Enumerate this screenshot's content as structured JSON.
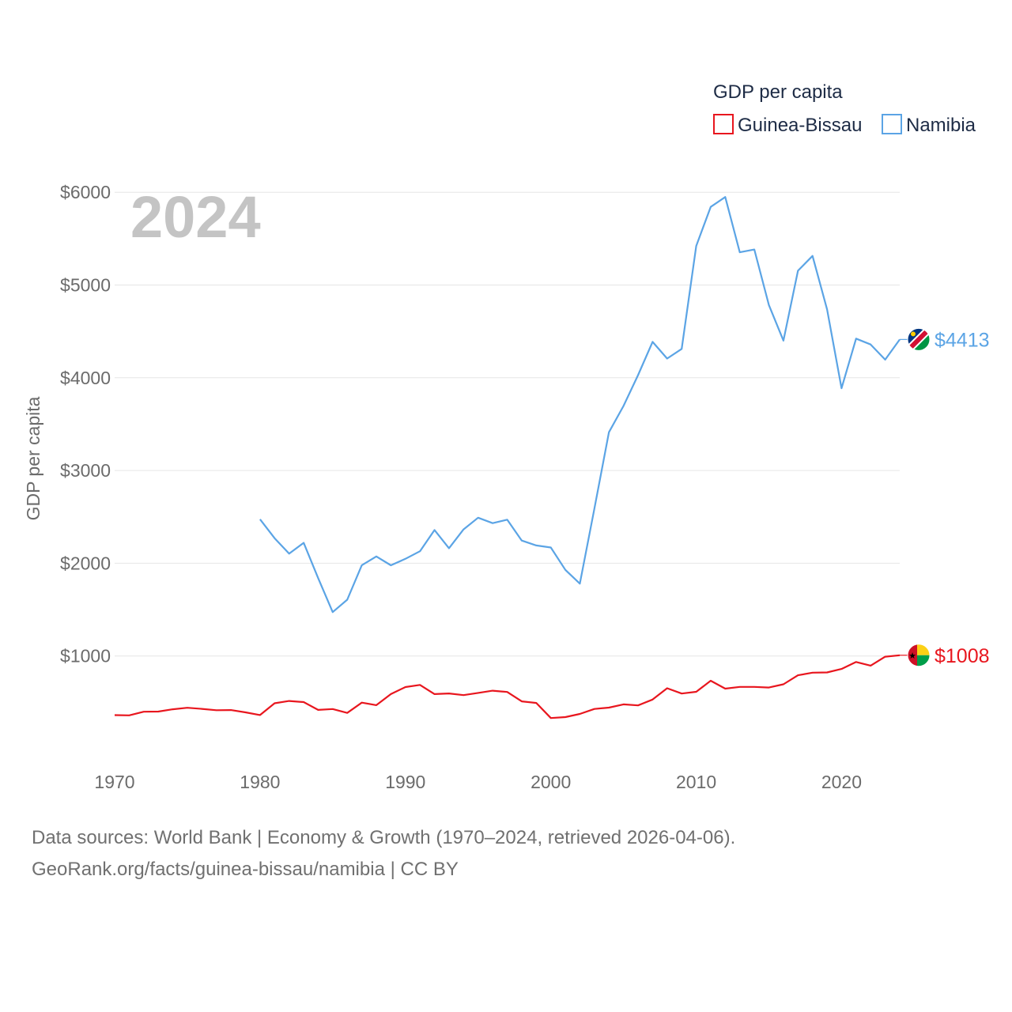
{
  "chart_data": {
    "type": "line",
    "year_label": "2024",
    "ylabel": "GDP per capita",
    "legend_title": "GDP per capita",
    "legend_placement": "top-right",
    "ylim": [
      0,
      6100
    ],
    "xlim": [
      1970,
      2024
    ],
    "x_ticks": [
      1970,
      1980,
      1990,
      2000,
      2010,
      2020
    ],
    "x_tick_labels": [
      "1970",
      "1980",
      "1990",
      "2000",
      "2010",
      "2020"
    ],
    "y_ticks": [
      1000,
      2000,
      3000,
      4000,
      5000,
      6000
    ],
    "y_tick_labels": [
      "$1000",
      "$2000",
      "$3000",
      "$4000",
      "$5000",
      "$6000"
    ],
    "grid": true,
    "series": [
      {
        "name": "Guinea-Bissau",
        "color": "#e8161e",
        "end_label": "$1008",
        "flag": "guinea-bissau-flag",
        "x": [
          1970,
          1971,
          1972,
          1973,
          1974,
          1975,
          1976,
          1977,
          1978,
          1979,
          1980,
          1981,
          1982,
          1983,
          1984,
          1985,
          1986,
          1987,
          1988,
          1989,
          1990,
          1991,
          1992,
          1993,
          1994,
          1995,
          1996,
          1997,
          1998,
          1999,
          2000,
          2001,
          2002,
          2003,
          2004,
          2005,
          2006,
          2007,
          2008,
          2009,
          2010,
          2011,
          2012,
          2013,
          2014,
          2015,
          2016,
          2017,
          2018,
          2019,
          2020,
          2021,
          2022,
          2023,
          2024
        ],
        "values": [
          362,
          360,
          399,
          401,
          425,
          442,
          430,
          415,
          417,
          392,
          363,
          490,
          515,
          503,
          419,
          428,
          386,
          497,
          470,
          589,
          665,
          688,
          589,
          596,
          578,
          602,
          626,
          612,
          511,
          494,
          331,
          341,
          375,
          429,
          443,
          478,
          467,
          530,
          652,
          595,
          614,
          733,
          648,
          667,
          667,
          660,
          695,
          792,
          820,
          823,
          860,
          935,
          896,
          992,
          1008
        ]
      },
      {
        "name": "Namibia",
        "color": "#5ba4e5",
        "end_label": "$4413",
        "flag": "namibia-flag",
        "x": [
          1980,
          1981,
          1982,
          1983,
          1984,
          1985,
          1986,
          1987,
          1988,
          1989,
          1990,
          1991,
          1992,
          1993,
          1994,
          1995,
          1996,
          1997,
          1998,
          1999,
          2000,
          2001,
          2002,
          2003,
          2004,
          2005,
          2006,
          2007,
          2008,
          2009,
          2010,
          2011,
          2012,
          2013,
          2014,
          2015,
          2016,
          2017,
          2018,
          2019,
          2020,
          2021,
          2022,
          2023,
          2024
        ],
        "values": [
          2474,
          2270,
          2103,
          2220,
          1840,
          1473,
          1607,
          1979,
          2073,
          1978,
          2048,
          2130,
          2358,
          2162,
          2365,
          2491,
          2432,
          2470,
          2245,
          2192,
          2170,
          1928,
          1780,
          2589,
          3413,
          3696,
          4028,
          4387,
          4207,
          4311,
          5421,
          5842,
          5949,
          5353,
          5383,
          4784,
          4401,
          5154,
          5314,
          4737,
          3887,
          4422,
          4359,
          4195,
          4413
        ]
      }
    ]
  },
  "footer": {
    "line1": "Data sources: World Bank | Economy & Growth (1970–2024, retrieved 2026-04-06).",
    "line2": "GeoRank.org/facts/guinea-bissau/namibia | CC BY"
  }
}
